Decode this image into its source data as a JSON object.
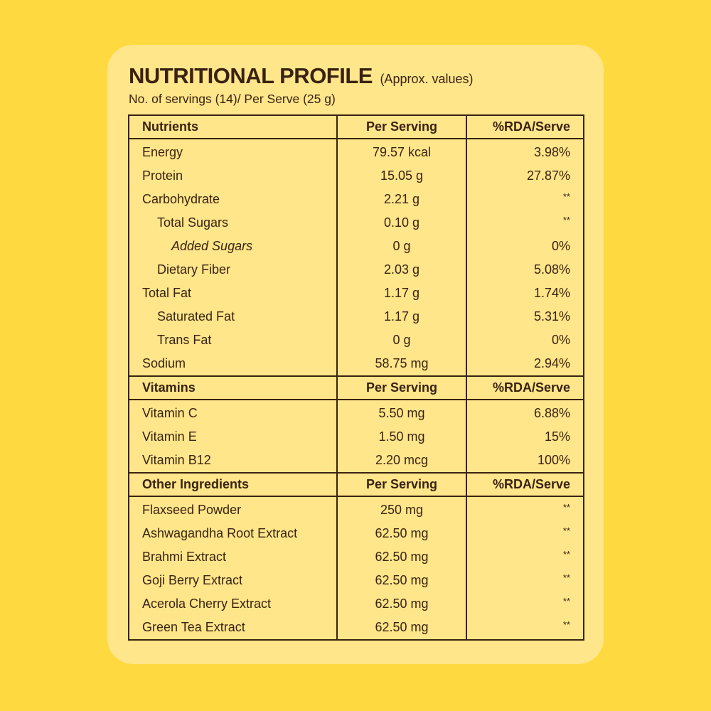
{
  "header": {
    "title": "NUTRITIONAL PROFILE",
    "title_note": "(Approx. values)",
    "subtitle": "No. of servings (14)/ Per Serve (25 g)"
  },
  "colors": {
    "background": "#FFD940",
    "card": "#FFE68A",
    "text": "#3A2212"
  },
  "sections": [
    {
      "headers": [
        "Nutrients",
        "Per Serving",
        "%RDA/Serve"
      ],
      "rows": [
        {
          "name": "Energy",
          "value": "79.57 kcal",
          "rda": "3.98%",
          "indent": 0
        },
        {
          "name": "Protein",
          "value": "15.05 g",
          "rda": "27.87%",
          "indent": 0
        },
        {
          "name": "Carbohydrate",
          "value": "2.21 g",
          "rda": "**",
          "indent": 0
        },
        {
          "name": "Total Sugars",
          "value": "0.10 g",
          "rda": "**",
          "indent": 1
        },
        {
          "name": "Added Sugars",
          "value": "0 g",
          "rda": "0%",
          "indent": 2
        },
        {
          "name": "Dietary Fiber",
          "value": "2.03 g",
          "rda": "5.08%",
          "indent": 1
        },
        {
          "name": "Total Fat",
          "value": "1.17 g",
          "rda": "1.74%",
          "indent": 0
        },
        {
          "name": "Saturated Fat",
          "value": "1.17 g",
          "rda": "5.31%",
          "indent": 1
        },
        {
          "name": "Trans Fat",
          "value": "0 g",
          "rda": "0%",
          "indent": 1
        },
        {
          "name": "Sodium",
          "value": "58.75 mg",
          "rda": "2.94%",
          "indent": 0
        }
      ]
    },
    {
      "headers": [
        "Vitamins",
        "Per Serving",
        "%RDA/Serve"
      ],
      "rows": [
        {
          "name": "Vitamin C",
          "value": "5.50 mg",
          "rda": "6.88%",
          "indent": 0
        },
        {
          "name": "Vitamin E",
          "value": "1.50 mg",
          "rda": "15%",
          "indent": 0
        },
        {
          "name": "Vitamin B12",
          "value": "2.20 mcg",
          "rda": "100%",
          "indent": 0
        }
      ]
    },
    {
      "headers": [
        "Other Ingredients",
        "Per Serving",
        "%RDA/Serve"
      ],
      "rows": [
        {
          "name": "Flaxseed Powder",
          "value": "250 mg",
          "rda": "**",
          "indent": 0
        },
        {
          "name": "Ashwagandha Root Extract",
          "value": "62.50 mg",
          "rda": "**",
          "indent": 0
        },
        {
          "name": "Brahmi Extract",
          "value": "62.50 mg",
          "rda": "**",
          "indent": 0
        },
        {
          "name": "Goji Berry Extract",
          "value": "62.50 mg",
          "rda": "**",
          "indent": 0
        },
        {
          "name": "Acerola Cherry Extract",
          "value": "62.50 mg",
          "rda": "**",
          "indent": 0
        },
        {
          "name": "Green Tea Extract",
          "value": "62.50 mg",
          "rda": "**",
          "indent": 0
        }
      ]
    }
  ]
}
